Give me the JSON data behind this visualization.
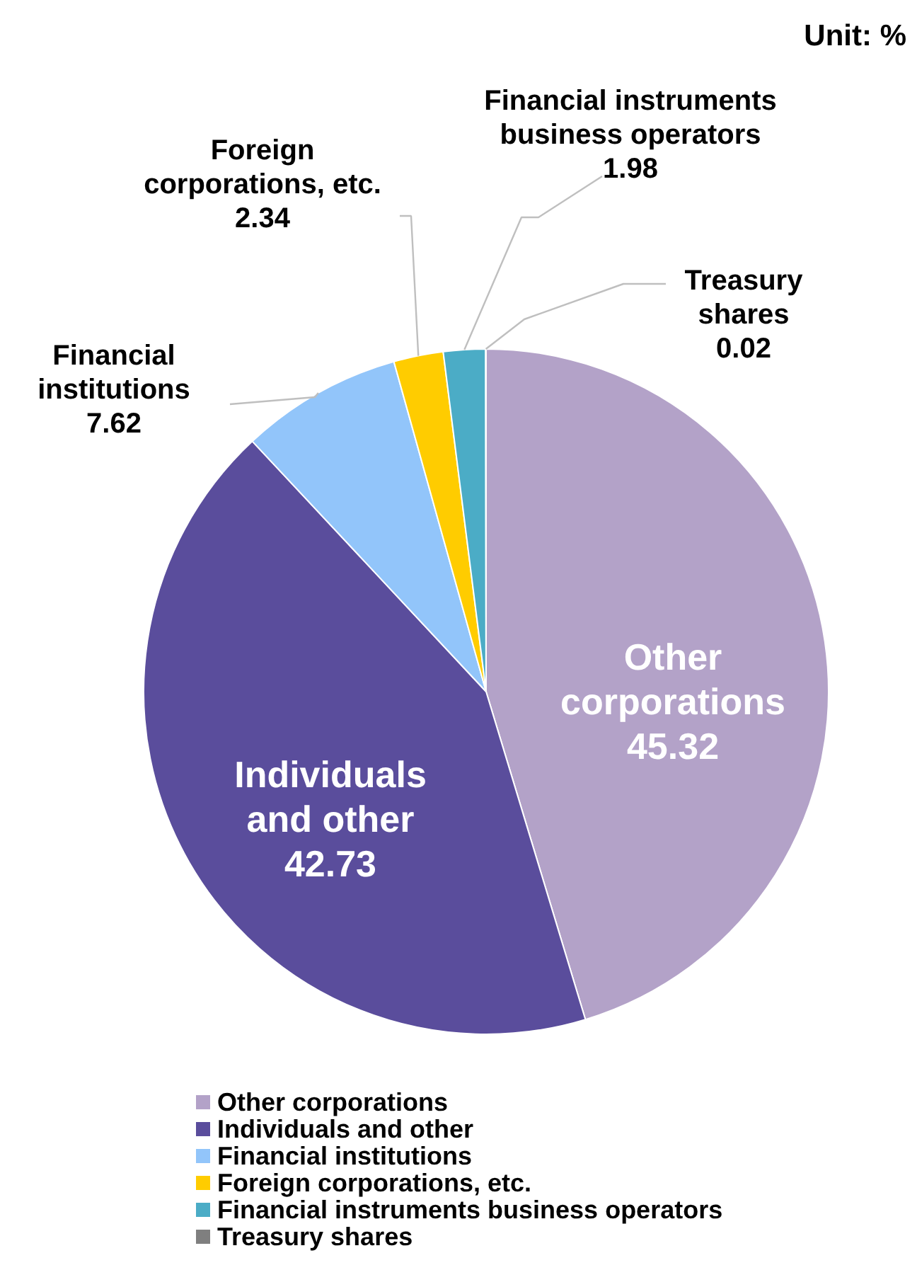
{
  "chart_data": {
    "type": "pie",
    "categories": [
      "Other corporations",
      "Individuals and other",
      "Financial institutions",
      "Foreign corporations, etc.",
      "Financial instruments business operators",
      "Treasury shares"
    ],
    "values": [
      45.32,
      42.73,
      7.62,
      2.34,
      1.98,
      0.02
    ],
    "colors": [
      "#b3a2c8",
      "#5a4d9c",
      "#92c5fa",
      "#ffcc00",
      "#4bacc6",
      "#7f7f7f"
    ],
    "data_labels": true,
    "legend": "bottom",
    "annotations": [
      "Unit: %"
    ]
  }
}
